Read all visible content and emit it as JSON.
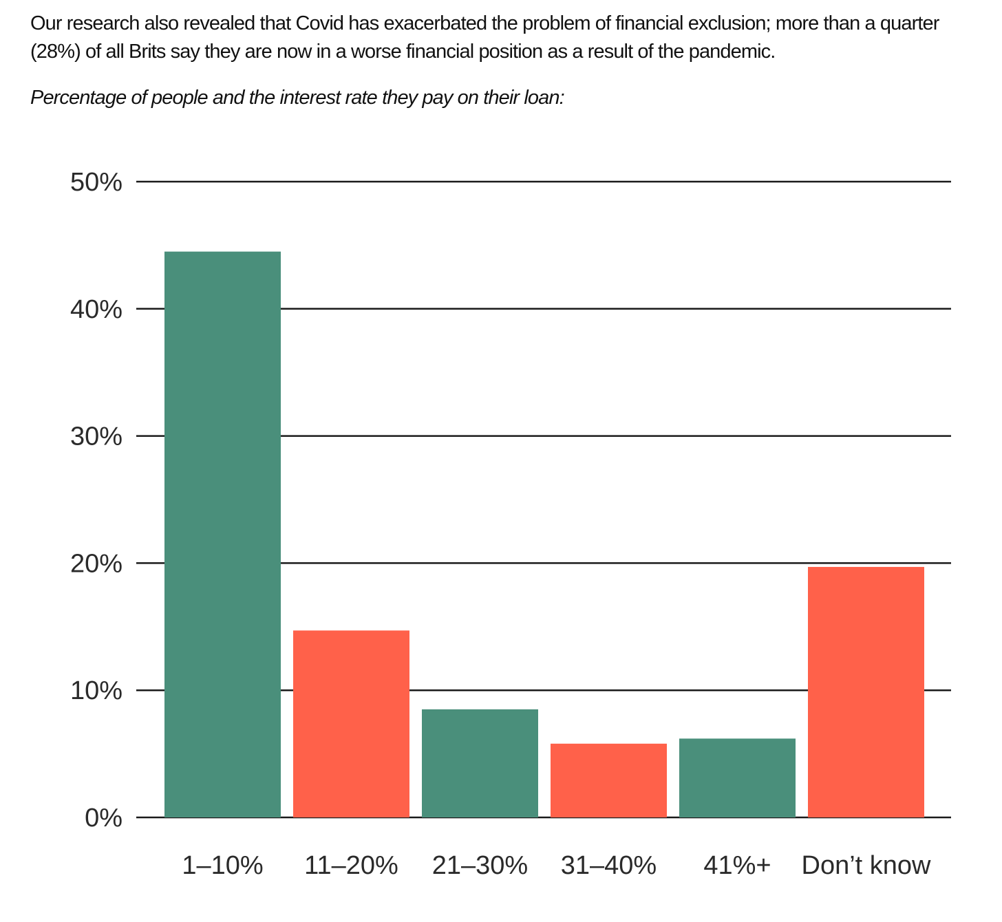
{
  "text": {
    "intro": "Our research also revealed that Covid has exacerbated the problem of financial exclusion; more than a quarter (28%) of all Brits say they are now in a worse financial position as a result of the pandemic.",
    "caption": "Percentage of people and the interest rate they pay on their loan:"
  },
  "chart_data": {
    "type": "bar",
    "title": "",
    "xlabel": "",
    "ylabel": "",
    "categories": [
      "1–10%",
      "11–20%",
      "21–30%",
      "31–40%",
      "41%+",
      "Don’t know"
    ],
    "values": [
      44.5,
      14.7,
      8.5,
      5.8,
      6.2,
      19.7
    ],
    "ylim": [
      0,
      50
    ],
    "yticks": [
      0,
      10,
      20,
      30,
      40,
      50
    ],
    "ytick_labels": [
      "0%",
      "10%",
      "20%",
      "30%",
      "40%",
      "50%"
    ],
    "grid": true,
    "legend": "none",
    "bar_colors": [
      "#4a8f7b",
      "#ff614a",
      "#4a8f7b",
      "#ff614a",
      "#4a8f7b",
      "#ff614a"
    ],
    "gridline_color": "#1a1a1a"
  }
}
